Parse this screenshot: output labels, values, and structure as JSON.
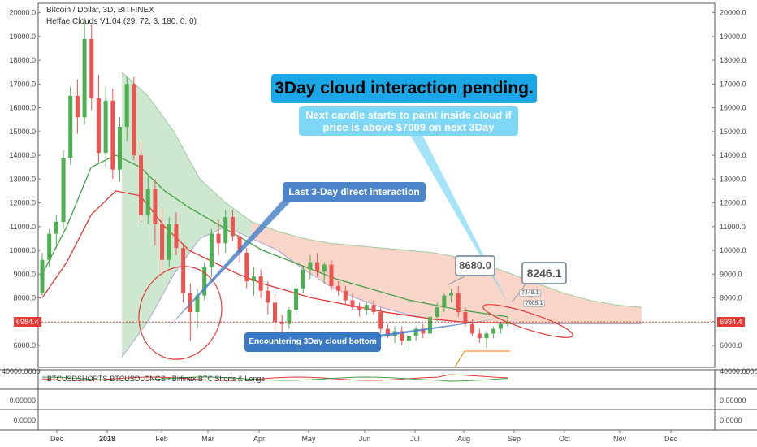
{
  "header": {
    "symbol": "Bitcoin / Dollar, 3D, BITFINEX",
    "indicator": "Heffae Clouds V1.04 (29, 72, 3, 180, 0, 0)"
  },
  "annotations": {
    "title": "3Day cloud interaction pending.",
    "subtitle": "Next candle starts to paint inside cloud if price is above $7009 on next 3Day",
    "last_interaction": "Last 3-Day direct interaction",
    "encountering": "Encountering 3Day cloud bottom",
    "box_high": "8680.0",
    "box_target": "8246.1",
    "tag_upper": "7449.1",
    "tag_lower": "7009.1"
  },
  "price": {
    "current": "6984.4"
  },
  "sub_pane": {
    "label": "BTCUSDSHORTS-BTCUSDLONGS - Bitfinex BTC Shorts & Longs",
    "left_value": "40000.0000",
    "right_value": "40000.0000",
    "pane2_value": "0.00000",
    "pane3_value": "0.0000"
  },
  "colors": {
    "up": "#26a69a",
    "up_candle": "#4caf50",
    "down": "#ef5350",
    "cloud_green": "#a5d6a7",
    "cloud_red": "#f4a48a",
    "accent": "#19a7e6"
  },
  "chart_data": {
    "type": "candlestick",
    "title": "Bitcoin / Dollar, 3D, BITFINEX",
    "y_ticks": [
      6000,
      7000,
      8000,
      9000,
      10000,
      11000,
      12000,
      13000,
      14000,
      15000,
      16000,
      17000,
      18000,
      19000,
      20000
    ],
    "y_tick_labels": [
      "6000.0",
      "7000.0",
      "8000.0",
      "9000.0",
      "10000.0",
      "11000.0",
      "12000.0",
      "13000.0",
      "14000.0",
      "15000.0",
      "16000.0",
      "17000.0",
      "18000.0",
      "19000.0",
      "20000.0"
    ],
    "x_ticks": [
      "Dec",
      "2018",
      "Feb",
      "Mar",
      "Apr",
      "May",
      "Jun",
      "Jul",
      "Aug",
      "Sep",
      "Oct",
      "Nov",
      "Dec"
    ],
    "ylim": [
      5000,
      20500
    ],
    "last_price": 6984.4,
    "candles": [
      [
        8200,
        9900,
        8100,
        9600
      ],
      [
        9600,
        10900,
        9300,
        10700
      ],
      [
        10700,
        11500,
        10100,
        11200
      ],
      [
        11200,
        14200,
        10900,
        13900
      ],
      [
        13900,
        16900,
        13600,
        16500
      ],
      [
        16500,
        17200,
        14900,
        15600
      ],
      [
        15600,
        19800,
        15300,
        18900
      ],
      [
        18900,
        19500,
        15900,
        16400
      ],
      [
        16400,
        17400,
        13700,
        14100
      ],
      [
        14100,
        16900,
        13500,
        16300
      ],
      [
        16300,
        16800,
        13000,
        13400
      ],
      [
        13400,
        15600,
        12900,
        15200
      ],
      [
        15200,
        17300,
        14600,
        17000
      ],
      [
        17000,
        17300,
        13800,
        14000
      ],
      [
        14000,
        14600,
        11200,
        11500
      ],
      [
        11500,
        13200,
        11100,
        12600
      ],
      [
        12600,
        13000,
        10200,
        11100
      ],
      [
        11100,
        11800,
        9000,
        9600
      ],
      [
        9600,
        11400,
        9300,
        11100
      ],
      [
        11100,
        11600,
        9800,
        10100
      ],
      [
        10100,
        10300,
        7800,
        8200
      ],
      [
        8200,
        8600,
        6200,
        7400
      ],
      [
        7400,
        8400,
        6700,
        8100
      ],
      [
        8100,
        9500,
        7900,
        9300
      ],
      [
        9300,
        10900,
        8900,
        10700
      ],
      [
        10700,
        11300,
        9800,
        10300
      ],
      [
        10300,
        11700,
        9900,
        11400
      ],
      [
        11400,
        11700,
        10400,
        10600
      ],
      [
        10600,
        10800,
        9500,
        9900
      ],
      [
        9900,
        10100,
        8400,
        8700
      ],
      [
        8700,
        9300,
        8100,
        8900
      ],
      [
        8900,
        9200,
        8000,
        8300
      ],
      [
        8300,
        8700,
        7300,
        7800
      ],
      [
        7800,
        8200,
        6600,
        7000
      ],
      [
        7000,
        7300,
        6500,
        6900
      ],
      [
        6900,
        7600,
        6700,
        7500
      ],
      [
        7500,
        8600,
        7300,
        8400
      ],
      [
        8400,
        9300,
        8200,
        9200
      ],
      [
        9200,
        9800,
        8800,
        9500
      ],
      [
        9500,
        9900,
        8900,
        9100
      ],
      [
        9100,
        9500,
        8600,
        9400
      ],
      [
        9400,
        9600,
        8300,
        8500
      ],
      [
        8500,
        8700,
        8100,
        8300
      ],
      [
        8300,
        8500,
        7700,
        7900
      ],
      [
        7900,
        8200,
        7500,
        7600
      ],
      [
        7600,
        7800,
        7200,
        7500
      ],
      [
        7500,
        7800,
        7300,
        7700
      ],
      [
        7700,
        7900,
        7300,
        7400
      ],
      [
        7400,
        7600,
        6500,
        6700
      ],
      [
        6700,
        6900,
        6300,
        6400
      ],
      [
        6400,
        6800,
        6100,
        6600
      ],
      [
        6600,
        6800,
        6000,
        6200
      ],
      [
        6200,
        6500,
        5800,
        6400
      ],
      [
        6400,
        6800,
        6200,
        6700
      ],
      [
        6700,
        6900,
        6300,
        6500
      ],
      [
        6500,
        7400,
        6400,
        7200
      ],
      [
        7200,
        7800,
        7000,
        7600
      ],
      [
        7600,
        8200,
        7400,
        8100
      ],
      [
        8100,
        8400,
        7800,
        8200
      ],
      [
        8200,
        8500,
        7200,
        7400
      ],
      [
        7400,
        7600,
        6800,
        6900
      ],
      [
        6900,
        7100,
        6400,
        6500
      ],
      [
        6500,
        6700,
        6100,
        6300
      ],
      [
        6300,
        6600,
        5900,
        6500
      ],
      [
        6500,
        6800,
        6300,
        6700
      ],
      [
        6700,
        7000,
        6500,
        6900
      ],
      [
        6900,
        7200,
        6800,
        7000
      ]
    ],
    "cloud_upper_line": [
      17500,
      16500,
      15000,
      13000,
      12000,
      11200,
      10800,
      10500,
      10300,
      10200,
      10100,
      10000,
      9900,
      9700,
      9400,
      9000,
      8600,
      8200,
      7900,
      7700,
      7600
    ],
    "cloud_lower_line": [
      5500,
      7000,
      9000,
      10500,
      11000,
      10500,
      10000,
      9200,
      8500,
      8000,
      7600,
      7300,
      7100,
      7000,
      6950,
      6900,
      6900,
      6900,
      6900,
      6900,
      6900
    ],
    "ma_red": [
      8000,
      9500,
      11500,
      12500,
      12300,
      11000,
      10000,
      9500,
      9000,
      8600,
      8300,
      8000,
      7800,
      7600,
      7400,
      7250,
      7100,
      7000,
      6950,
      6950
    ],
    "ma_green": [
      9000,
      11000,
      13500,
      14000,
      13500,
      12500,
      11800,
      11200,
      10600,
      10000,
      9600,
      9200,
      8800,
      8500,
      8200,
      7900,
      7700,
      7500,
      7350,
      7200
    ],
    "series": [
      {
        "name": "Heffae Clouds V1.04 (29, 72, 3, 180, 0, 0)"
      }
    ]
  }
}
